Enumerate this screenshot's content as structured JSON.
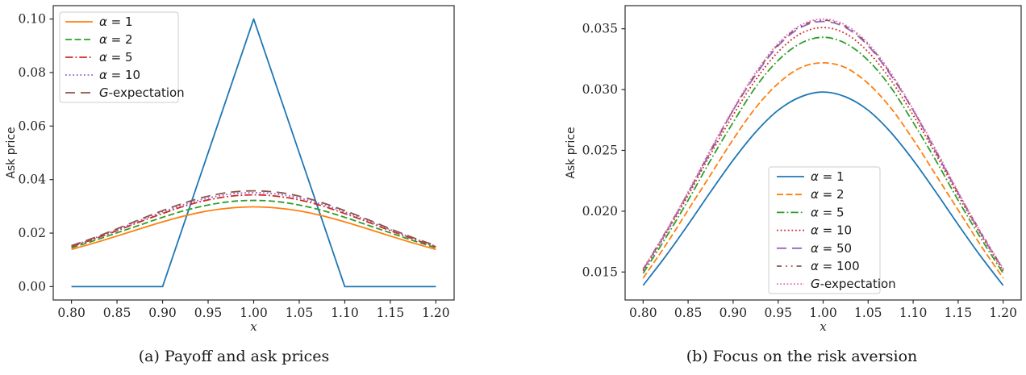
{
  "chart_data": [
    {
      "id": "a",
      "type": "line",
      "caption": "(a) Payoff and ask prices",
      "xlabel": "x",
      "ylabel": "Ask price",
      "xlim": [
        0.78,
        1.22
      ],
      "ylim": [
        -0.005,
        0.105
      ],
      "xticks": [
        0.8,
        0.85,
        0.9,
        0.95,
        1.0,
        1.05,
        1.1,
        1.15,
        1.2
      ],
      "xtick_labels": [
        "0.80",
        "0.85",
        "0.90",
        "0.95",
        "1.00",
        "1.05",
        "1.10",
        "1.15",
        "1.20"
      ],
      "yticks": [
        0.0,
        0.02,
        0.04,
        0.06,
        0.08,
        0.1
      ],
      "ytick_labels": [
        "0.00",
        "0.02",
        "0.04",
        "0.06",
        "0.08",
        "0.10"
      ],
      "grid": false,
      "legend_position": "upper left",
      "x": [
        0.8,
        0.825,
        0.85,
        0.875,
        0.9,
        0.925,
        0.95,
        0.975,
        1.0,
        1.025,
        1.05,
        1.075,
        1.1,
        1.125,
        1.15,
        1.175,
        1.2
      ],
      "series": [
        {
          "name": "payoff",
          "label_parts": null,
          "color": "#1f77b4",
          "dash": "solid",
          "smooth": false,
          "x": [
            0.8,
            0.9,
            1.0,
            1.1,
            1.2
          ],
          "y": [
            0.0,
            0.0,
            0.1,
            0.0,
            0.0
          ]
        },
        {
          "name": "alpha-1",
          "label_parts": [
            {
              "text": "α",
              "italic": true
            },
            {
              "text": " = 1",
              "italic": false
            }
          ],
          "color": "#ff7f0e",
          "dash": "solid",
          "smooth": true,
          "y": [
            0.0139,
            0.0163,
            0.0189,
            0.0216,
            0.0242,
            0.0265,
            0.0283,
            0.0294,
            0.0298,
            0.0294,
            0.0283,
            0.0265,
            0.0242,
            0.0216,
            0.0189,
            0.0163,
            0.0139
          ]
        },
        {
          "name": "alpha-2",
          "label_parts": [
            {
              "text": "α",
              "italic": true
            },
            {
              "text": " = 2",
              "italic": false
            }
          ],
          "color": "#2ca02c",
          "dash": "dashed",
          "smooth": true,
          "y": [
            0.0145,
            0.0172,
            0.0201,
            0.023,
            0.0259,
            0.0285,
            0.0305,
            0.0318,
            0.0322,
            0.0318,
            0.0305,
            0.0285,
            0.0259,
            0.023,
            0.0201,
            0.0172,
            0.0145
          ]
        },
        {
          "name": "alpha-5",
          "label_parts": [
            {
              "text": "α",
              "italic": true
            },
            {
              "text": " = 5",
              "italic": false
            }
          ],
          "color": "#d62728",
          "dash": "dashdot",
          "smooth": true,
          "y": [
            0.0149,
            0.0178,
            0.0209,
            0.0242,
            0.0273,
            0.0302,
            0.0324,
            0.0338,
            0.0343,
            0.0338,
            0.0324,
            0.0302,
            0.0273,
            0.0242,
            0.0209,
            0.0178,
            0.0149
          ]
        },
        {
          "name": "alpha-10",
          "label_parts": [
            {
              "text": "α",
              "italic": true
            },
            {
              "text": " = 10",
              "italic": false
            }
          ],
          "color": "#9467bd",
          "dash": "dotted",
          "smooth": true,
          "y": [
            0.0151,
            0.0181,
            0.0213,
            0.0247,
            0.0279,
            0.0308,
            0.0331,
            0.0346,
            0.0351,
            0.0346,
            0.0331,
            0.0308,
            0.0279,
            0.0247,
            0.0213,
            0.0181,
            0.0151
          ]
        },
        {
          "name": "g-expectation",
          "label_parts": [
            {
              "text": "G",
              "italic": true
            },
            {
              "text": "-expectation",
              "italic": false
            }
          ],
          "color": "#8c564b",
          "dash": "longdash",
          "smooth": true,
          "y": [
            0.0153,
            0.0183,
            0.0216,
            0.0251,
            0.0284,
            0.0314,
            0.0338,
            0.0353,
            0.0358,
            0.0353,
            0.0338,
            0.0314,
            0.0284,
            0.0251,
            0.0216,
            0.0183,
            0.0153
          ]
        }
      ]
    },
    {
      "id": "b",
      "type": "line",
      "caption": "(b) Focus on the risk aversion",
      "xlabel": "x",
      "ylabel": "Ask price",
      "xlim": [
        0.78,
        1.22
      ],
      "ylim": [
        0.0127,
        0.0369
      ],
      "xticks": [
        0.8,
        0.85,
        0.9,
        0.95,
        1.0,
        1.05,
        1.1,
        1.15,
        1.2
      ],
      "xtick_labels": [
        "0.80",
        "0.85",
        "0.90",
        "0.95",
        "1.00",
        "1.05",
        "1.10",
        "1.15",
        "1.20"
      ],
      "yticks": [
        0.015,
        0.02,
        0.025,
        0.03,
        0.035
      ],
      "ytick_labels": [
        "0.015",
        "0.020",
        "0.025",
        "0.030",
        "0.035"
      ],
      "grid": false,
      "legend_position": "lower center",
      "x": [
        0.8,
        0.825,
        0.85,
        0.875,
        0.9,
        0.925,
        0.95,
        0.975,
        1.0,
        1.025,
        1.05,
        1.075,
        1.1,
        1.125,
        1.15,
        1.175,
        1.2
      ],
      "series": [
        {
          "name": "alpha-1",
          "label_parts": [
            {
              "text": "α",
              "italic": true
            },
            {
              "text": " = 1",
              "italic": false
            }
          ],
          "color": "#1f77b4",
          "dash": "solid",
          "smooth": true,
          "y": [
            0.0139,
            0.0163,
            0.0189,
            0.0216,
            0.0242,
            0.0265,
            0.0283,
            0.0294,
            0.0298,
            0.0294,
            0.0283,
            0.0265,
            0.0242,
            0.0216,
            0.0189,
            0.0163,
            0.0139
          ]
        },
        {
          "name": "alpha-2",
          "label_parts": [
            {
              "text": "α",
              "italic": true
            },
            {
              "text": " = 2",
              "italic": false
            }
          ],
          "color": "#ff7f0e",
          "dash": "dashed",
          "smooth": true,
          "y": [
            0.0145,
            0.0172,
            0.0201,
            0.023,
            0.0259,
            0.0285,
            0.0305,
            0.0318,
            0.0322,
            0.0318,
            0.0305,
            0.0285,
            0.0259,
            0.023,
            0.0201,
            0.0172,
            0.0145
          ]
        },
        {
          "name": "alpha-5",
          "label_parts": [
            {
              "text": "α",
              "italic": true
            },
            {
              "text": " = 5",
              "italic": false
            }
          ],
          "color": "#2ca02c",
          "dash": "dashdot",
          "smooth": true,
          "y": [
            0.0149,
            0.0178,
            0.0209,
            0.0242,
            0.0273,
            0.0302,
            0.0324,
            0.0338,
            0.0343,
            0.0338,
            0.0324,
            0.0302,
            0.0273,
            0.0242,
            0.0209,
            0.0178,
            0.0149
          ]
        },
        {
          "name": "alpha-10",
          "label_parts": [
            {
              "text": "α",
              "italic": true
            },
            {
              "text": " = 10",
              "italic": false
            }
          ],
          "color": "#d62728",
          "dash": "dotted",
          "smooth": true,
          "y": [
            0.0151,
            0.0181,
            0.0213,
            0.0247,
            0.0279,
            0.0308,
            0.0331,
            0.0346,
            0.0351,
            0.0346,
            0.0331,
            0.0308,
            0.0279,
            0.0247,
            0.0213,
            0.0181,
            0.0151
          ]
        },
        {
          "name": "alpha-50",
          "label_parts": [
            {
              "text": "α",
              "italic": true
            },
            {
              "text": " = 50",
              "italic": false
            }
          ],
          "color": "#9467bd",
          "dash": "longdash",
          "smooth": true,
          "y": [
            0.0152,
            0.0182,
            0.0215,
            0.0249,
            0.0283,
            0.0312,
            0.0336,
            0.0351,
            0.0356,
            0.0351,
            0.0336,
            0.0312,
            0.0283,
            0.0249,
            0.0215,
            0.0182,
            0.0152
          ]
        },
        {
          "name": "alpha-100",
          "label_parts": [
            {
              "text": "α",
              "italic": true
            },
            {
              "text": " = 100",
              "italic": false
            }
          ],
          "color": "#8c564b",
          "dash": "dashdotdot",
          "smooth": true,
          "y": [
            0.0152,
            0.0183,
            0.0215,
            0.025,
            0.0283,
            0.0313,
            0.0337,
            0.0352,
            0.0357,
            0.0352,
            0.0337,
            0.0313,
            0.0283,
            0.025,
            0.0215,
            0.0183,
            0.0152
          ]
        },
        {
          "name": "g-expectation",
          "label_parts": [
            {
              "text": "G",
              "italic": true
            },
            {
              "text": "-expectation",
              "italic": false
            }
          ],
          "color": "#e377c2",
          "dash": "densedot",
          "smooth": true,
          "y": [
            0.0153,
            0.0183,
            0.0216,
            0.0251,
            0.0284,
            0.0314,
            0.0338,
            0.0353,
            0.0358,
            0.0353,
            0.0338,
            0.0314,
            0.0284,
            0.0251,
            0.0216,
            0.0183,
            0.0153
          ]
        }
      ]
    }
  ],
  "style": {
    "spine_color": "#2b2b2b",
    "text_color": "#262626",
    "legend_border": "#cccccc",
    "legend_fill": "#ffffff"
  }
}
